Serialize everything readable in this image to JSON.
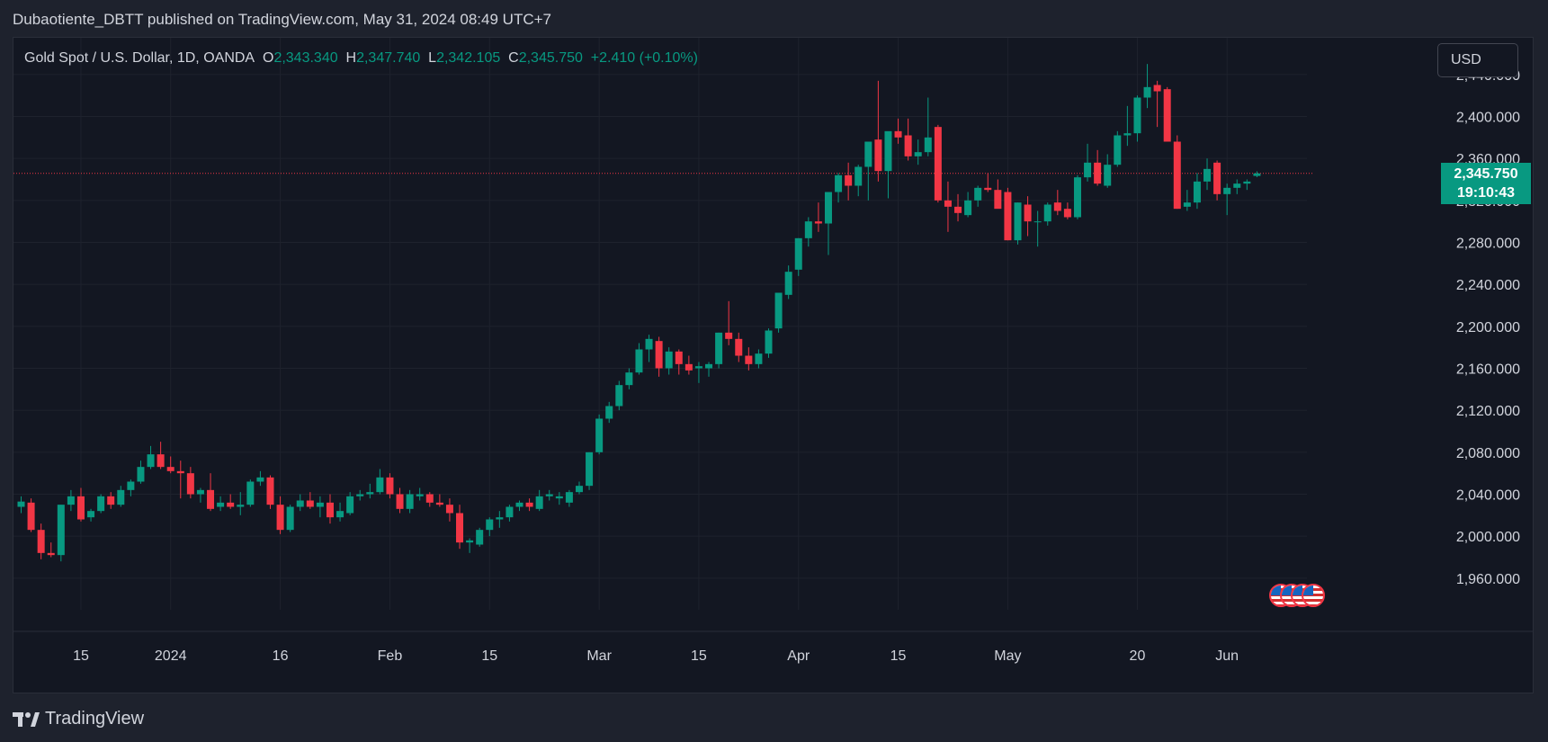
{
  "header": {
    "caption": "Dubaotiente_DBTT published on TradingView.com, May 31, 2024 08:49 UTC+7"
  },
  "legend": {
    "symbol": "Gold Spot / U.S. Dollar, 1D, OANDA",
    "open_label": "O",
    "open": "2,343.340",
    "high_label": "H",
    "high": "2,347.740",
    "low_label": "L",
    "low": "2,342.105",
    "close_label": "C",
    "close": "2,345.750",
    "change": "+2.410 (+0.10%)"
  },
  "currency_button": "USD",
  "price_tag": {
    "price": "2,345.750",
    "countdown": "19:10:43"
  },
  "footer": {
    "brand": "TradingView"
  },
  "colors": {
    "up": "#089981",
    "down": "#f23645",
    "background": "#131722",
    "grid": "#1e222d"
  },
  "chart_data": {
    "type": "candlestick",
    "ylim": [
      1935,
      2475
    ],
    "yticks": [
      1960,
      2000,
      2040,
      2080,
      2120,
      2160,
      2200,
      2240,
      2280,
      2320,
      2360,
      2400,
      2440
    ],
    "ytick_labels": [
      "1,960.000",
      "2,000.000",
      "2,040.000",
      "2,080.000",
      "2,120.000",
      "2,160.000",
      "2,200.000",
      "2,240.000",
      "2,280.000",
      "2,320.000",
      "2,360.000",
      "2,400.000",
      "2,440.000"
    ],
    "current_price": 2345.75,
    "xticks": [
      {
        "label": "15",
        "index": 6
      },
      {
        "label": "2024",
        "index": 15
      },
      {
        "label": "16",
        "index": 26
      },
      {
        "label": "Feb",
        "index": 37
      },
      {
        "label": "15",
        "index": 47
      },
      {
        "label": "Mar",
        "index": 58
      },
      {
        "label": "15",
        "index": 68
      },
      {
        "label": "Apr",
        "index": 78
      },
      {
        "label": "15",
        "index": 88
      },
      {
        "label": "May",
        "index": 99
      },
      {
        "label": "20",
        "index": 112
      },
      {
        "label": "Jun",
        "index": 121
      }
    ],
    "candles": [
      [
        2028,
        2038,
        2022,
        2033
      ],
      [
        2032,
        2036,
        2004,
        2006
      ],
      [
        2006,
        2012,
        1978,
        1984
      ],
      [
        1984,
        1994,
        1980,
        1982
      ],
      [
        1982,
        2030,
        1976,
        2030
      ],
      [
        2030,
        2044,
        2024,
        2038
      ],
      [
        2038,
        2046,
        2014,
        2016
      ],
      [
        2018,
        2026,
        2014,
        2024
      ],
      [
        2024,
        2040,
        2022,
        2038
      ],
      [
        2038,
        2042,
        2026,
        2030
      ],
      [
        2030,
        2048,
        2028,
        2044
      ],
      [
        2044,
        2054,
        2038,
        2052
      ],
      [
        2052,
        2072,
        2050,
        2066
      ],
      [
        2066,
        2086,
        2064,
        2078
      ],
      [
        2078,
        2090,
        2064,
        2066
      ],
      [
        2066,
        2076,
        2060,
        2062
      ],
      [
        2062,
        2072,
        2036,
        2060
      ],
      [
        2060,
        2066,
        2036,
        2040
      ],
      [
        2040,
        2046,
        2032,
        2044
      ],
      [
        2044,
        2060,
        2024,
        2026
      ],
      [
        2028,
        2038,
        2024,
        2032
      ],
      [
        2032,
        2040,
        2026,
        2028
      ],
      [
        2028,
        2042,
        2020,
        2030
      ],
      [
        2030,
        2054,
        2028,
        2052
      ],
      [
        2052,
        2062,
        2048,
        2056
      ],
      [
        2056,
        2058,
        2026,
        2030
      ],
      [
        2030,
        2038,
        2002,
        2006
      ],
      [
        2006,
        2030,
        2004,
        2028
      ],
      [
        2028,
        2040,
        2024,
        2034
      ],
      [
        2034,
        2042,
        2026,
        2028
      ],
      [
        2028,
        2038,
        2018,
        2032
      ],
      [
        2032,
        2040,
        2012,
        2018
      ],
      [
        2018,
        2032,
        2014,
        2024
      ],
      [
        2022,
        2042,
        2020,
        2038
      ],
      [
        2038,
        2044,
        2034,
        2040
      ],
      [
        2040,
        2050,
        2036,
        2042
      ],
      [
        2042,
        2064,
        2040,
        2056
      ],
      [
        2056,
        2060,
        2036,
        2040
      ],
      [
        2040,
        2046,
        2022,
        2026
      ],
      [
        2026,
        2044,
        2022,
        2040
      ],
      [
        2038,
        2046,
        2034,
        2040
      ],
      [
        2040,
        2042,
        2028,
        2032
      ],
      [
        2032,
        2040,
        2028,
        2030
      ],
      [
        2030,
        2036,
        2014,
        2022
      ],
      [
        2022,
        2030,
        1988,
        1994
      ],
      [
        1994,
        1998,
        1984,
        1996
      ],
      [
        1992,
        2008,
        1990,
        2006
      ],
      [
        2006,
        2018,
        2000,
        2016
      ],
      [
        2016,
        2024,
        2008,
        2018
      ],
      [
        2018,
        2030,
        2014,
        2028
      ],
      [
        2028,
        2034,
        2024,
        2032
      ],
      [
        2032,
        2036,
        2024,
        2028
      ],
      [
        2026,
        2044,
        2024,
        2038
      ],
      [
        2038,
        2044,
        2034,
        2040
      ],
      [
        2036,
        2042,
        2030,
        2038
      ],
      [
        2032,
        2044,
        2028,
        2042
      ],
      [
        2042,
        2052,
        2040,
        2048
      ],
      [
        2048,
        2080,
        2044,
        2080
      ],
      [
        2080,
        2116,
        2078,
        2112
      ],
      [
        2112,
        2128,
        2108,
        2124
      ],
      [
        2124,
        2148,
        2120,
        2144
      ],
      [
        2144,
        2160,
        2140,
        2156
      ],
      [
        2156,
        2184,
        2154,
        2178
      ],
      [
        2178,
        2192,
        2166,
        2188
      ],
      [
        2186,
        2190,
        2152,
        2160
      ],
      [
        2160,
        2180,
        2154,
        2176
      ],
      [
        2176,
        2178,
        2154,
        2164
      ],
      [
        2164,
        2172,
        2154,
        2158
      ],
      [
        2160,
        2166,
        2146,
        2162
      ],
      [
        2160,
        2166,
        2152,
        2164
      ],
      [
        2164,
        2194,
        2160,
        2194
      ],
      [
        2194,
        2224,
        2182,
        2188
      ],
      [
        2188,
        2194,
        2166,
        2172
      ],
      [
        2172,
        2180,
        2158,
        2164
      ],
      [
        2164,
        2178,
        2160,
        2174
      ],
      [
        2174,
        2198,
        2170,
        2196
      ],
      [
        2198,
        2232,
        2194,
        2232
      ],
      [
        2230,
        2258,
        2226,
        2252
      ],
      [
        2254,
        2284,
        2248,
        2284
      ],
      [
        2284,
        2304,
        2276,
        2300
      ],
      [
        2300,
        2318,
        2290,
        2298
      ],
      [
        2298,
        2328,
        2268,
        2328
      ],
      [
        2328,
        2346,
        2318,
        2344
      ],
      [
        2344,
        2356,
        2320,
        2334
      ],
      [
        2334,
        2354,
        2324,
        2352
      ],
      [
        2352,
        2376,
        2320,
        2376
      ],
      [
        2378,
        2434,
        2338,
        2348
      ],
      [
        2348,
        2384,
        2322,
        2386
      ],
      [
        2386,
        2398,
        2374,
        2380
      ],
      [
        2382,
        2398,
        2358,
        2362
      ],
      [
        2362,
        2378,
        2354,
        2366
      ],
      [
        2366,
        2418,
        2362,
        2380
      ],
      [
        2390,
        2392,
        2318,
        2320
      ],
      [
        2320,
        2338,
        2290,
        2314
      ],
      [
        2314,
        2326,
        2300,
        2308
      ],
      [
        2306,
        2328,
        2304,
        2320
      ],
      [
        2320,
        2334,
        2314,
        2332
      ],
      [
        2332,
        2346,
        2328,
        2330
      ],
      [
        2330,
        2340,
        2314,
        2312
      ],
      [
        2328,
        2332,
        2282,
        2282
      ],
      [
        2282,
        2318,
        2278,
        2318
      ],
      [
        2316,
        2324,
        2286,
        2300
      ],
      [
        2300,
        2310,
        2276,
        2300
      ],
      [
        2300,
        2318,
        2296,
        2316
      ],
      [
        2318,
        2330,
        2306,
        2310
      ],
      [
        2312,
        2318,
        2302,
        2304
      ],
      [
        2304,
        2344,
        2302,
        2342
      ],
      [
        2342,
        2374,
        2338,
        2356
      ],
      [
        2356,
        2368,
        2334,
        2336
      ],
      [
        2334,
        2364,
        2332,
        2354
      ],
      [
        2354,
        2386,
        2352,
        2382
      ],
      [
        2382,
        2410,
        2372,
        2384
      ],
      [
        2384,
        2420,
        2376,
        2418
      ],
      [
        2418,
        2450,
        2408,
        2428
      ],
      [
        2430,
        2434,
        2390,
        2424
      ],
      [
        2426,
        2428,
        2378,
        2376
      ],
      [
        2376,
        2382,
        2312,
        2312
      ],
      [
        2314,
        2330,
        2310,
        2318
      ],
      [
        2318,
        2346,
        2312,
        2338
      ],
      [
        2338,
        2360,
        2330,
        2350
      ],
      [
        2356,
        2358,
        2320,
        2326
      ],
      [
        2326,
        2336,
        2306,
        2332
      ],
      [
        2332,
        2340,
        2326,
        2336
      ],
      [
        2336,
        2340,
        2330,
        2338
      ],
      [
        2343.34,
        2347.74,
        2342.105,
        2345.75
      ]
    ]
  }
}
